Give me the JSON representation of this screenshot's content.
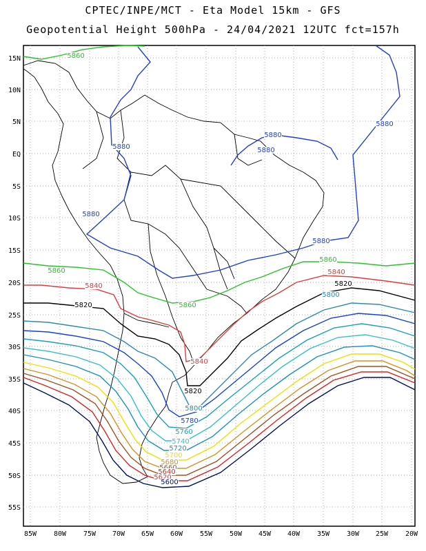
{
  "header": {
    "line1": "CPTEC/INPE/MCT -  Eta Model 15km - GFS",
    "line2": "Geopotential Height 500hPa - 24/04/2021 12UTC fct=157h"
  },
  "axes": {
    "lat_labels": [
      "15N",
      "10N",
      "5N",
      "EQ",
      "5S",
      "10S",
      "15S",
      "20S",
      "25S",
      "30S",
      "35S",
      "40S",
      "45S",
      "50S",
      "55S"
    ],
    "lon_labels": [
      "85W",
      "80W",
      "75W",
      "70W",
      "65W",
      "60W",
      "55W",
      "50W",
      "45W",
      "40W",
      "35W",
      "30W",
      "25W",
      "20W"
    ]
  },
  "colors": {
    "c5880": "#1e3ed8",
    "c5860": "#22c822",
    "c5840": "#e03a3a",
    "c5820": "#000000",
    "c5800": "#2a8ab0",
    "c5780": "#1040e0",
    "c5760": "#12a0c0",
    "c5740": "#30c0d0",
    "c5720": "#1890c8",
    "c5700": "#f0e000",
    "c5680": "#d89020",
    "c5660": "#a05020",
    "c5640": "#e02020",
    "c5620": "#e03030",
    "c5600": "#001060"
  },
  "contour_labels": [
    {
      "text": "5880",
      "color_key": "c5880"
    },
    {
      "text": "5880",
      "color_key": "c5880"
    },
    {
      "text": "5880",
      "color_key": "c5880"
    },
    {
      "text": "5880",
      "color_key": "c5880"
    },
    {
      "text": "5880",
      "color_key": "c5880"
    },
    {
      "text": "5880",
      "color_key": "c5880"
    },
    {
      "text": "5880",
      "color_key": "c5880"
    },
    {
      "text": "5860",
      "color_key": "c5860"
    },
    {
      "text": "5860",
      "color_key": "c5860"
    },
    {
      "text": "5860",
      "color_key": "c5860"
    },
    {
      "text": "5860",
      "color_key": "c5860"
    },
    {
      "text": "5840",
      "color_key": "c5840"
    },
    {
      "text": "5840",
      "color_key": "c5840"
    },
    {
      "text": "5840",
      "color_key": "c5840"
    },
    {
      "text": "5820",
      "color_key": "c5820"
    },
    {
      "text": "5820",
      "color_key": "c5820"
    },
    {
      "text": "5820",
      "color_key": "c5820"
    },
    {
      "text": "5800",
      "color_key": "c5800"
    },
    {
      "text": "5800",
      "color_key": "c5800"
    },
    {
      "text": "5780",
      "color_key": "c5780"
    },
    {
      "text": "5760",
      "color_key": "c5760"
    },
    {
      "text": "5740",
      "color_key": "c5740"
    },
    {
      "text": "5720",
      "color_key": "c5720"
    },
    {
      "text": "5700",
      "color_key": "c5700"
    },
    {
      "text": "5680",
      "color_key": "c5680"
    },
    {
      "text": "5660",
      "color_key": "c5660"
    },
    {
      "text": "5640",
      "color_key": "c5640"
    },
    {
      "text": "5620",
      "color_key": "c5620"
    },
    {
      "text": "5600",
      "color_key": "c5600"
    }
  ]
}
